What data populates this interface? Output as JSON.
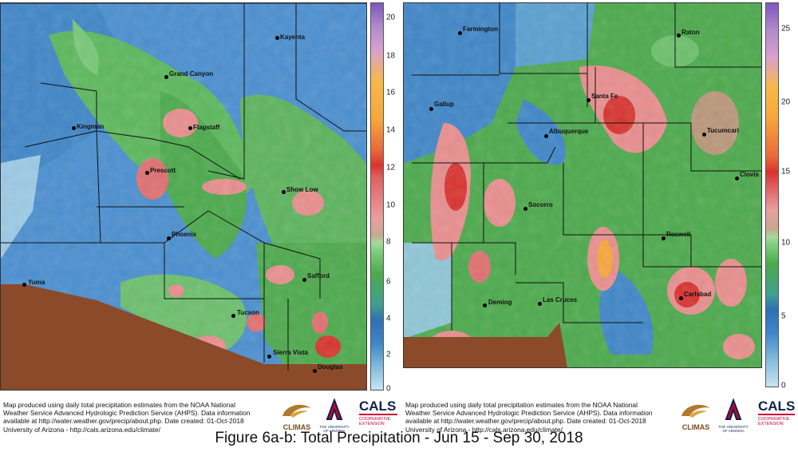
{
  "figure_caption": "Figure 6a-b: Total Precipitation - Jun 15 - Sep 30, 2018",
  "credit_text": [
    "Map produced using daily total precipitation estimates from the NOAA National",
    "Weather Service Advanced Hydrologic Prediction Service (AHPS). Data information",
    "available at http://water.weather.gov/precip/about.php. Date created: 01-Oct-2018",
    "University of Arizona - http://cals.arizona.edu/climate/"
  ],
  "logos": {
    "climas": "CLIMAS",
    "ua": "THE UNIVERSITY OF ARIZONA",
    "cals": "CALS",
    "cals_sub": "COOPERATIVE EXTENSION"
  },
  "colors": {
    "dry": "#a9d3e8",
    "low": "#3d84c6",
    "mid": "#4caa4c",
    "high": "#e98e8e",
    "heavy": "#d9332f",
    "extreme": "#f7a73c",
    "mexico": "#8b4a2a"
  },
  "panel_a": {
    "region": "Arizona",
    "colorbar_ticks": [
      "0",
      "2",
      "4",
      "6",
      "8",
      "10",
      "12",
      "14",
      "16",
      "18",
      "20"
    ],
    "cities": [
      "Kayenta",
      "Grand Canyon",
      "Kingman",
      "Flagstaff",
      "Prescott",
      "Show Low",
      "Phoenix",
      "Safford",
      "Yuma",
      "Tucson",
      "Sierra Vista",
      "Douglas"
    ]
  },
  "panel_b": {
    "region": "New Mexico",
    "colorbar_ticks": [
      "0",
      "5",
      "10",
      "15",
      "20",
      "25"
    ],
    "cities": [
      "Farmington",
      "Raton",
      "Gallup",
      "Santa Fe",
      "Albuquerque",
      "Tucumcari",
      "Clovis",
      "Socorro",
      "Roswell",
      "Deming",
      "Las Cruces",
      "Carlsbad"
    ]
  }
}
